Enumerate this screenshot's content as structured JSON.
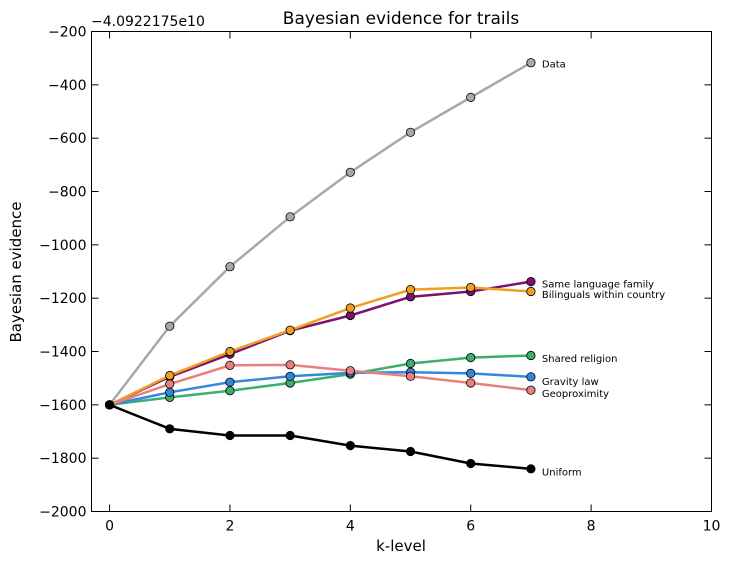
{
  "chart_data": {
    "type": "line",
    "title": "Bayesian evidence for trails",
    "xlabel": "k-level",
    "ylabel": "Bayesian evidence",
    "y_offset_label": "−4.0922175e10",
    "xlim": [
      -0.3,
      10
    ],
    "ylim": [
      -2000,
      -200
    ],
    "x_ticks": [
      0,
      2,
      4,
      6,
      8,
      10
    ],
    "x_tick_labels": [
      "0",
      "2",
      "4",
      "6",
      "8",
      "10"
    ],
    "y_ticks": [
      -2000,
      -1800,
      -1600,
      -1400,
      -1200,
      -1000,
      -800,
      -600,
      -400,
      -200
    ],
    "y_tick_labels": [
      "−2000",
      "−1800",
      "−1600",
      "−1400",
      "−1200",
      "−1000",
      "−800",
      "−600",
      "−400",
      "−200"
    ],
    "grid": false,
    "legend": "inline labels at line ends",
    "x": [
      0,
      1,
      2,
      3,
      4,
      5,
      6,
      7
    ],
    "series": [
      {
        "name": "Data",
        "color": "#a8a8a8",
        "values": [
          -1600,
          -1305,
          -1082,
          -895,
          -728,
          -578,
          -447,
          -317
        ]
      },
      {
        "name": "Same language family",
        "color": "#7b1270",
        "values": [
          -1600,
          -1495,
          -1410,
          -1322,
          -1265,
          -1195,
          -1175,
          -1138
        ]
      },
      {
        "name": "Bilinguals within country",
        "color": "#f0a020",
        "values": [
          -1600,
          -1490,
          -1400,
          -1320,
          -1237,
          -1168,
          -1160,
          -1175
        ]
      },
      {
        "name": "Shared religion",
        "color": "#3cae6e",
        "values": [
          -1600,
          -1572,
          -1547,
          -1518,
          -1485,
          -1445,
          -1423,
          -1415
        ]
      },
      {
        "name": "Gravity law",
        "color": "#3388dd",
        "values": [
          -1600,
          -1553,
          -1515,
          -1493,
          -1480,
          -1478,
          -1482,
          -1495
        ]
      },
      {
        "name": "Geoproximity",
        "color": "#e88080",
        "values": [
          -1600,
          -1522,
          -1452,
          -1450,
          -1472,
          -1493,
          -1518,
          -1545
        ]
      },
      {
        "name": "Uniform",
        "color": "#000000",
        "values": [
          -1600,
          -1690,
          -1715,
          -1715,
          -1753,
          -1775,
          -1820,
          -1840
        ]
      }
    ],
    "label_y": {
      "Data": -320,
      "Same language family": -1145,
      "Bilinguals within country": -1185,
      "Shared religion": -1425,
      "Gravity law": -1510,
      "Geoproximity": -1555,
      "Uniform": -1850
    }
  }
}
